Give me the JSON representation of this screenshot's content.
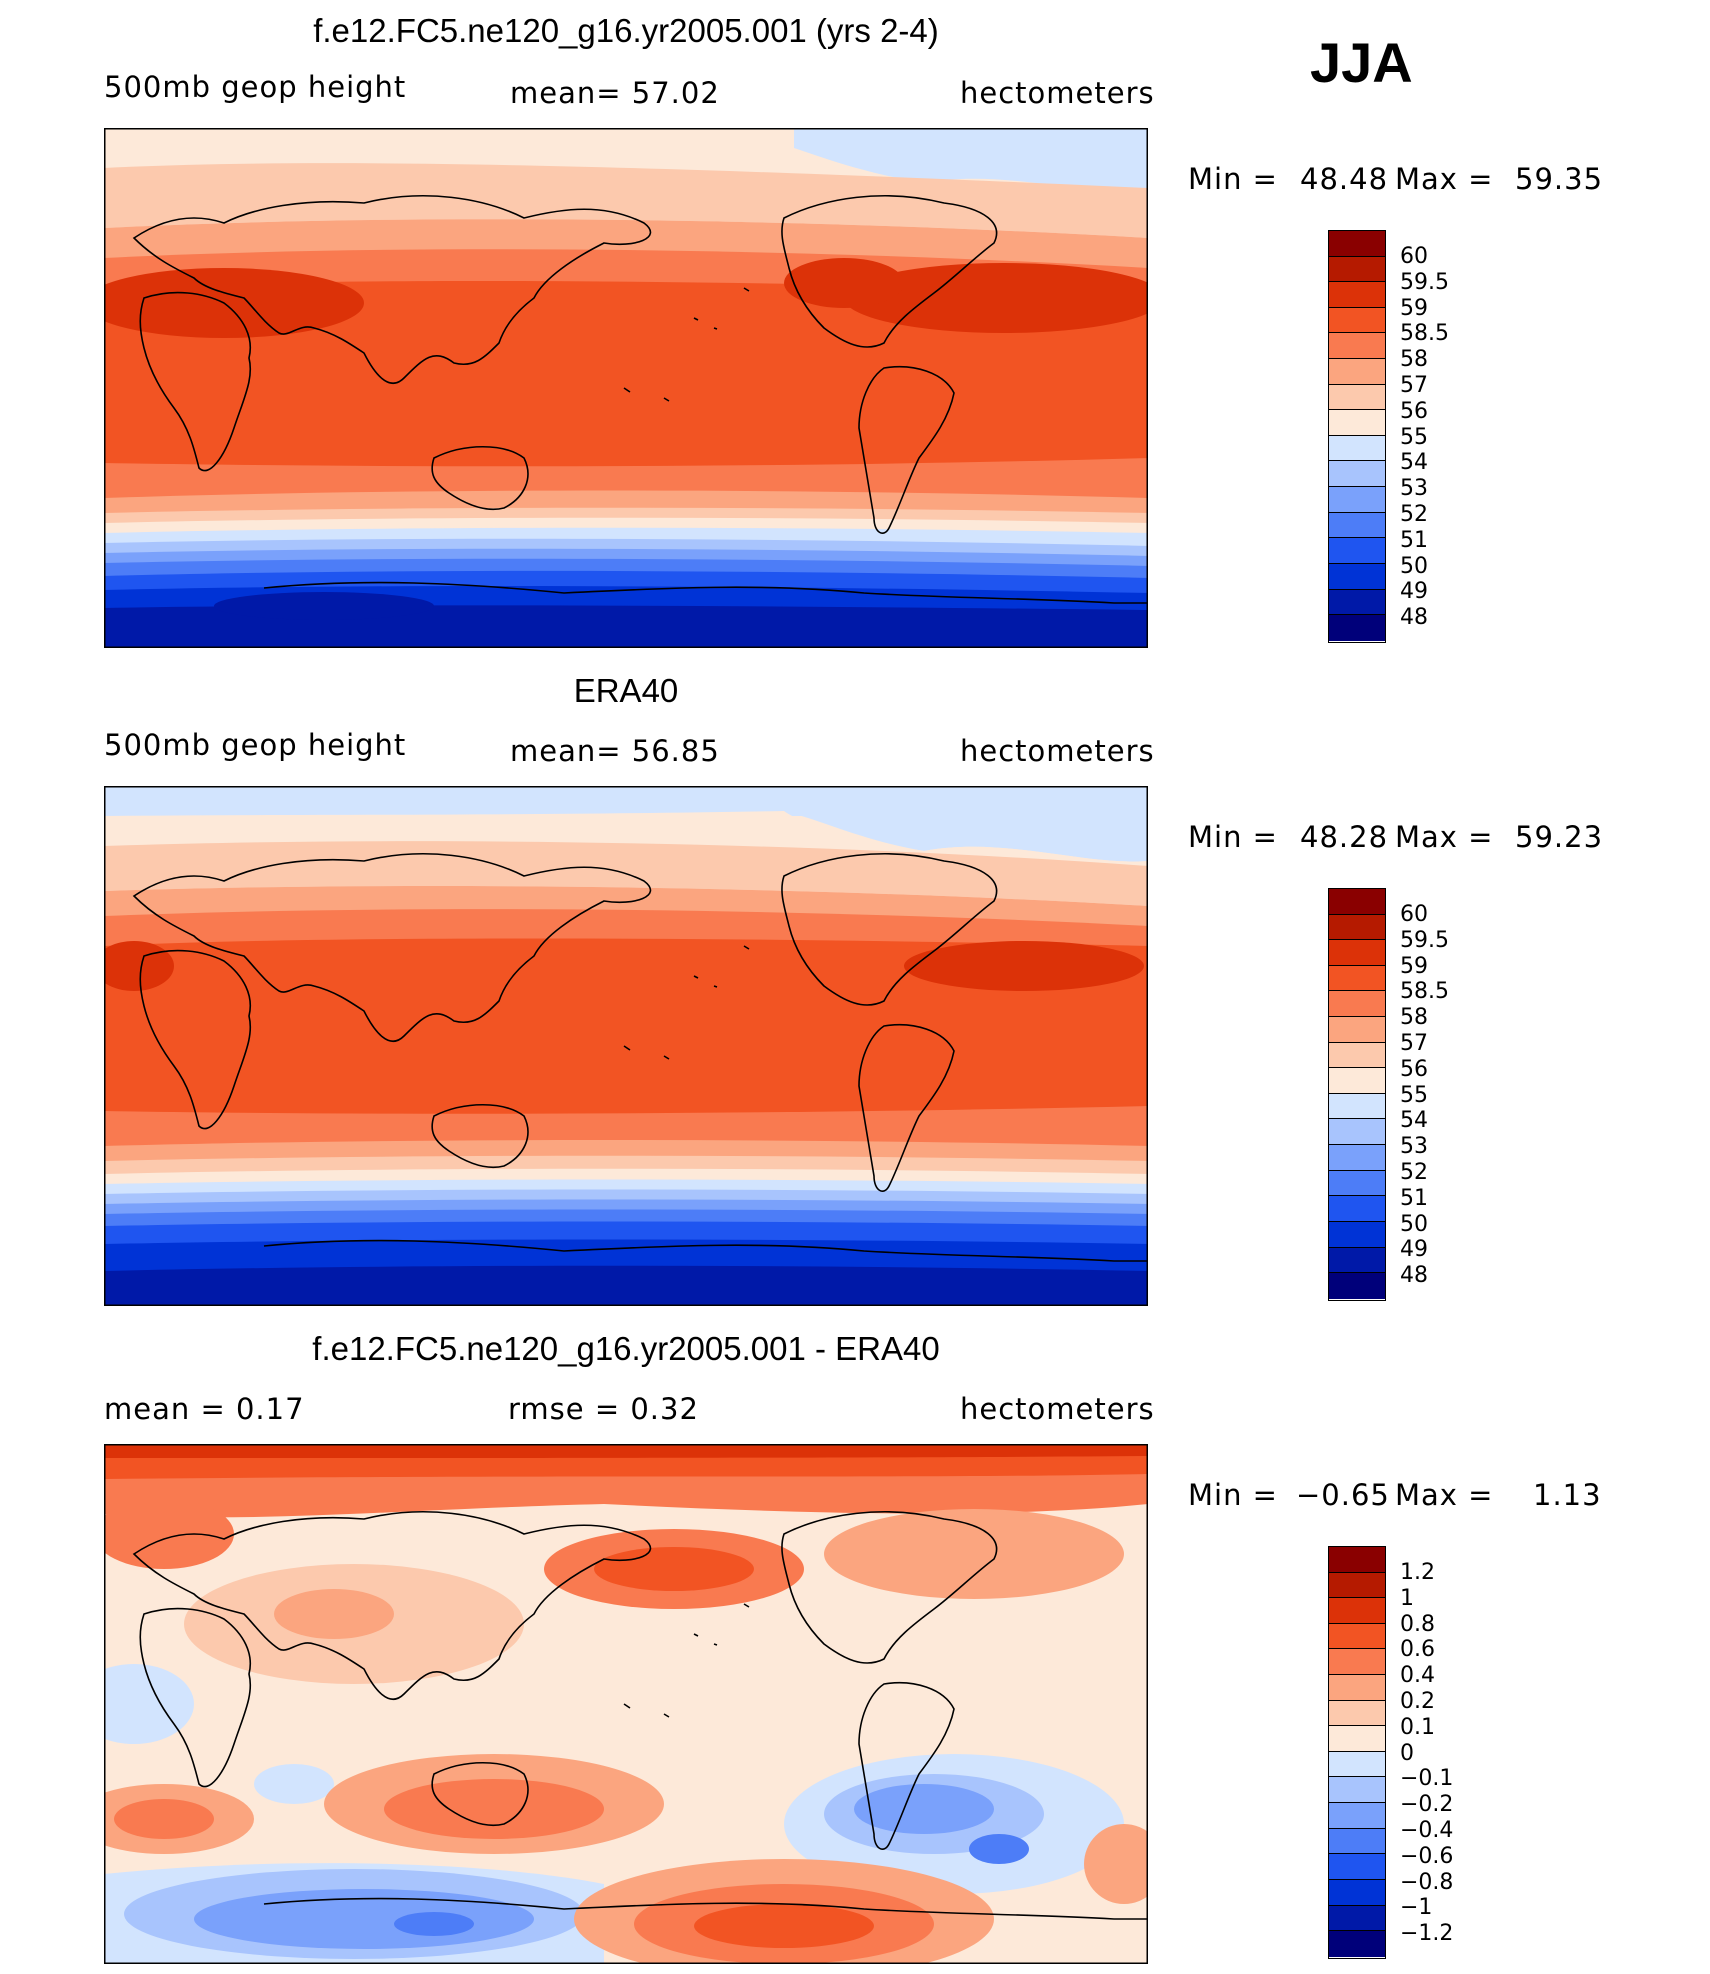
{
  "season": "JJA",
  "colors": {
    "full": [
      "#00007a",
      "#0019a8",
      "#0033d6",
      "#1f55f0",
      "#4d7df7",
      "#7aa1fb",
      "#a8c4fd",
      "#d2e4fe",
      "#fde9d9",
      "#fcc9ad",
      "#fba57f",
      "#f97a50",
      "#f25423",
      "#dc3208",
      "#b51a00",
      "#8a0000"
    ],
    "diff": [
      "#00007a",
      "#0019a8",
      "#0033d6",
      "#1f55f0",
      "#4d7df7",
      "#7aa1fb",
      "#a8c4fd",
      "#d2e4fe",
      "#fde9d9",
      "#fcc9ad",
      "#fba57f",
      "#f97a50",
      "#f25423",
      "#dc3208",
      "#b51a00",
      "#8a0000"
    ],
    "land": "#000000"
  },
  "panels": [
    {
      "id": "model",
      "title": "f.e12.FC5.ne120_g16.yr2005.001 (yrs 2-4)",
      "left_label": "500mb  geop  height",
      "center_label": "mean=   57.02",
      "right_label": "hectometers",
      "min_label": "Min  =",
      "min_value": "48.48",
      "max_label": "Max  =",
      "max_value": "59.35",
      "colorbar_labels": [
        "60",
        "59.5",
        "59",
        "58.5",
        "58",
        "57",
        "56",
        "55",
        "54",
        "53",
        "52",
        "51",
        "50",
        "49",
        "48"
      ]
    },
    {
      "id": "obs",
      "title": "ERA40",
      "left_label": "500mb  geop  height",
      "center_label": "mean=   56.85",
      "right_label": "hectometers",
      "min_label": "Min  =",
      "min_value": "48.28",
      "max_label": "Max  =",
      "max_value": "59.23",
      "colorbar_labels": [
        "60",
        "59.5",
        "59",
        "58.5",
        "58",
        "57",
        "56",
        "55",
        "54",
        "53",
        "52",
        "51",
        "50",
        "49",
        "48"
      ]
    },
    {
      "id": "diff",
      "title": "f.e12.FC5.ne120_g16.yr2005.001 - ERA40",
      "left_label": "mean  =      0.17",
      "center_label": "rmse  =      0.32",
      "right_label": "hectometers",
      "min_label": "Min  =",
      "min_value": "−0.65",
      "max_label": "Max  =",
      "max_value": "1.13",
      "colorbar_labels": [
        "1.2",
        "1",
        "0.8",
        "0.6",
        "0.4",
        "0.2",
        "0.1",
        "0",
        "−0.1",
        "−0.2",
        "−0.4",
        "−0.6",
        "−0.8",
        "−1",
        "−1.2"
      ]
    }
  ]
}
